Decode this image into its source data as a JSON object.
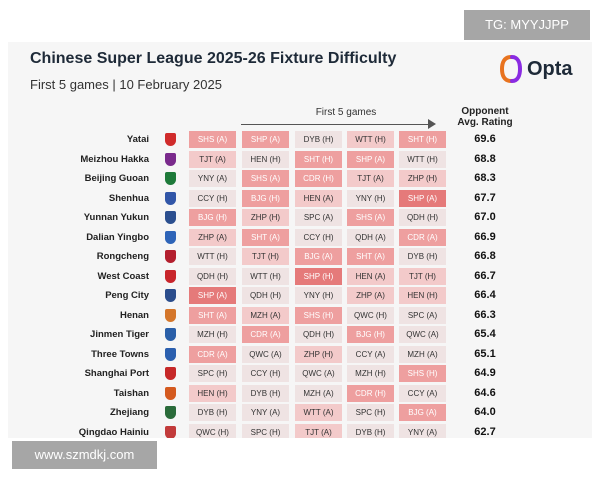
{
  "watermark_top": "TG: MYYJJPP",
  "watermark_bottom": "www.szmdkj.com",
  "brand": "Opta",
  "chart_data": {
    "type": "table",
    "title": "Chinese Super League 2025-26 Fixture Difficulty",
    "subtitle": "First 5 games | 10 February 2025",
    "columns_label": "First 5 games",
    "rating_label_1": "Opponent",
    "rating_label_2": "Avg. Rating",
    "difficulty_colors": {
      "1": "#efe3e3",
      "2": "#f3caca",
      "3": "#ee9f9f",
      "4": "#e57a7a"
    },
    "rows": [
      {
        "team": "Yatai",
        "crest": "#d02b2b",
        "rating": "69.6",
        "fixtures": [
          "SHS (A)",
          "SHP (A)",
          "DYB (H)",
          "WTT (H)",
          "SHT (H)"
        ],
        "levels": [
          3,
          3,
          1,
          2,
          3
        ]
      },
      {
        "team": "Meizhou Hakka",
        "crest": "#7a2a8c",
        "rating": "68.8",
        "fixtures": [
          "TJT (A)",
          "HEN (H)",
          "SHT (H)",
          "SHP (A)",
          "WTT (H)"
        ],
        "levels": [
          2,
          1,
          3,
          3,
          1
        ]
      },
      {
        "team": "Beijing Guoan",
        "crest": "#1e7a3a",
        "rating": "68.3",
        "fixtures": [
          "YNY (A)",
          "SHS (A)",
          "CDR (H)",
          "TJT (A)",
          "ZHP (H)"
        ],
        "levels": [
          1,
          3,
          3,
          2,
          2
        ]
      },
      {
        "team": "Shenhua",
        "crest": "#3156a8",
        "rating": "67.7",
        "fixtures": [
          "CCY (H)",
          "BJG (H)",
          "HEN (A)",
          "YNY (H)",
          "SHP (A)"
        ],
        "levels": [
          1,
          3,
          2,
          1,
          4
        ]
      },
      {
        "team": "Yunnan Yukun",
        "crest": "#2b4f8f",
        "rating": "67.0",
        "fixtures": [
          "BJG (H)",
          "ZHP (H)",
          "SPC (A)",
          "SHS (A)",
          "QDH (H)"
        ],
        "levels": [
          3,
          2,
          1,
          3,
          1
        ]
      },
      {
        "team": "Dalian Yingbo",
        "crest": "#2e64b8",
        "rating": "66.9",
        "fixtures": [
          "ZHP (A)",
          "SHT (A)",
          "CCY (H)",
          "QDH (A)",
          "CDR (A)"
        ],
        "levels": [
          2,
          3,
          1,
          1,
          3
        ]
      },
      {
        "team": "Rongcheng",
        "crest": "#b31f2e",
        "rating": "66.8",
        "fixtures": [
          "WTT (H)",
          "TJT (H)",
          "BJG (A)",
          "SHT (A)",
          "DYB (H)"
        ],
        "levels": [
          1,
          2,
          3,
          3,
          1
        ]
      },
      {
        "team": "West Coast",
        "crest": "#c8252b",
        "rating": "66.7",
        "fixtures": [
          "QDH (H)",
          "WTT (H)",
          "SHP (H)",
          "HEN (A)",
          "TJT (H)"
        ],
        "levels": [
          1,
          1,
          4,
          2,
          2
        ]
      },
      {
        "team": "Peng City",
        "crest": "#2b4d8c",
        "rating": "66.4",
        "fixtures": [
          "SHP (A)",
          "QDH (H)",
          "YNY (H)",
          "ZHP (A)",
          "HEN (H)"
        ],
        "levels": [
          4,
          1,
          1,
          2,
          2
        ]
      },
      {
        "team": "Henan",
        "crest": "#d4762a",
        "rating": "66.3",
        "fixtures": [
          "SHT (A)",
          "MZH (A)",
          "SHS (H)",
          "QWC (H)",
          "SPC (A)"
        ],
        "levels": [
          3,
          2,
          3,
          1,
          1
        ]
      },
      {
        "team": "Jinmen Tiger",
        "crest": "#2a5fa8",
        "rating": "65.4",
        "fixtures": [
          "MZH (H)",
          "CDR (A)",
          "QDH (H)",
          "BJG (H)",
          "QWC (A)"
        ],
        "levels": [
          1,
          3,
          1,
          3,
          1
        ]
      },
      {
        "team": "Three Towns",
        "crest": "#2b5fae",
        "rating": "65.1",
        "fixtures": [
          "CDR (A)",
          "QWC (A)",
          "ZHP (H)",
          "CCY (A)",
          "MZH (A)"
        ],
        "levels": [
          3,
          1,
          2,
          1,
          1
        ]
      },
      {
        "team": "Shanghai Port",
        "crest": "#c62828",
        "rating": "64.9",
        "fixtures": [
          "SPC (H)",
          "CCY (H)",
          "QWC (A)",
          "MZH (H)",
          "SHS (H)"
        ],
        "levels": [
          1,
          1,
          1,
          1,
          3
        ]
      },
      {
        "team": "Taishan",
        "crest": "#d45a1f",
        "rating": "64.6",
        "fixtures": [
          "HEN (H)",
          "DYB (H)",
          "MZH (A)",
          "CDR (H)",
          "CCY (A)"
        ],
        "levels": [
          2,
          1,
          1,
          3,
          1
        ]
      },
      {
        "team": "Zhejiang",
        "crest": "#2a6b3a",
        "rating": "64.0",
        "fixtures": [
          "DYB (H)",
          "YNY (A)",
          "WTT (A)",
          "SPC (H)",
          "BJG (A)"
        ],
        "levels": [
          1,
          1,
          2,
          1,
          3
        ]
      },
      {
        "team": "Qingdao Hainiu",
        "crest": "#c23b3b",
        "rating": "62.7",
        "fixtures": [
          "QWC (H)",
          "SPC (H)",
          "TJT (A)",
          "DYB (H)",
          "YNY (A)"
        ],
        "levels": [
          1,
          1,
          2,
          1,
          1
        ]
      }
    ]
  }
}
